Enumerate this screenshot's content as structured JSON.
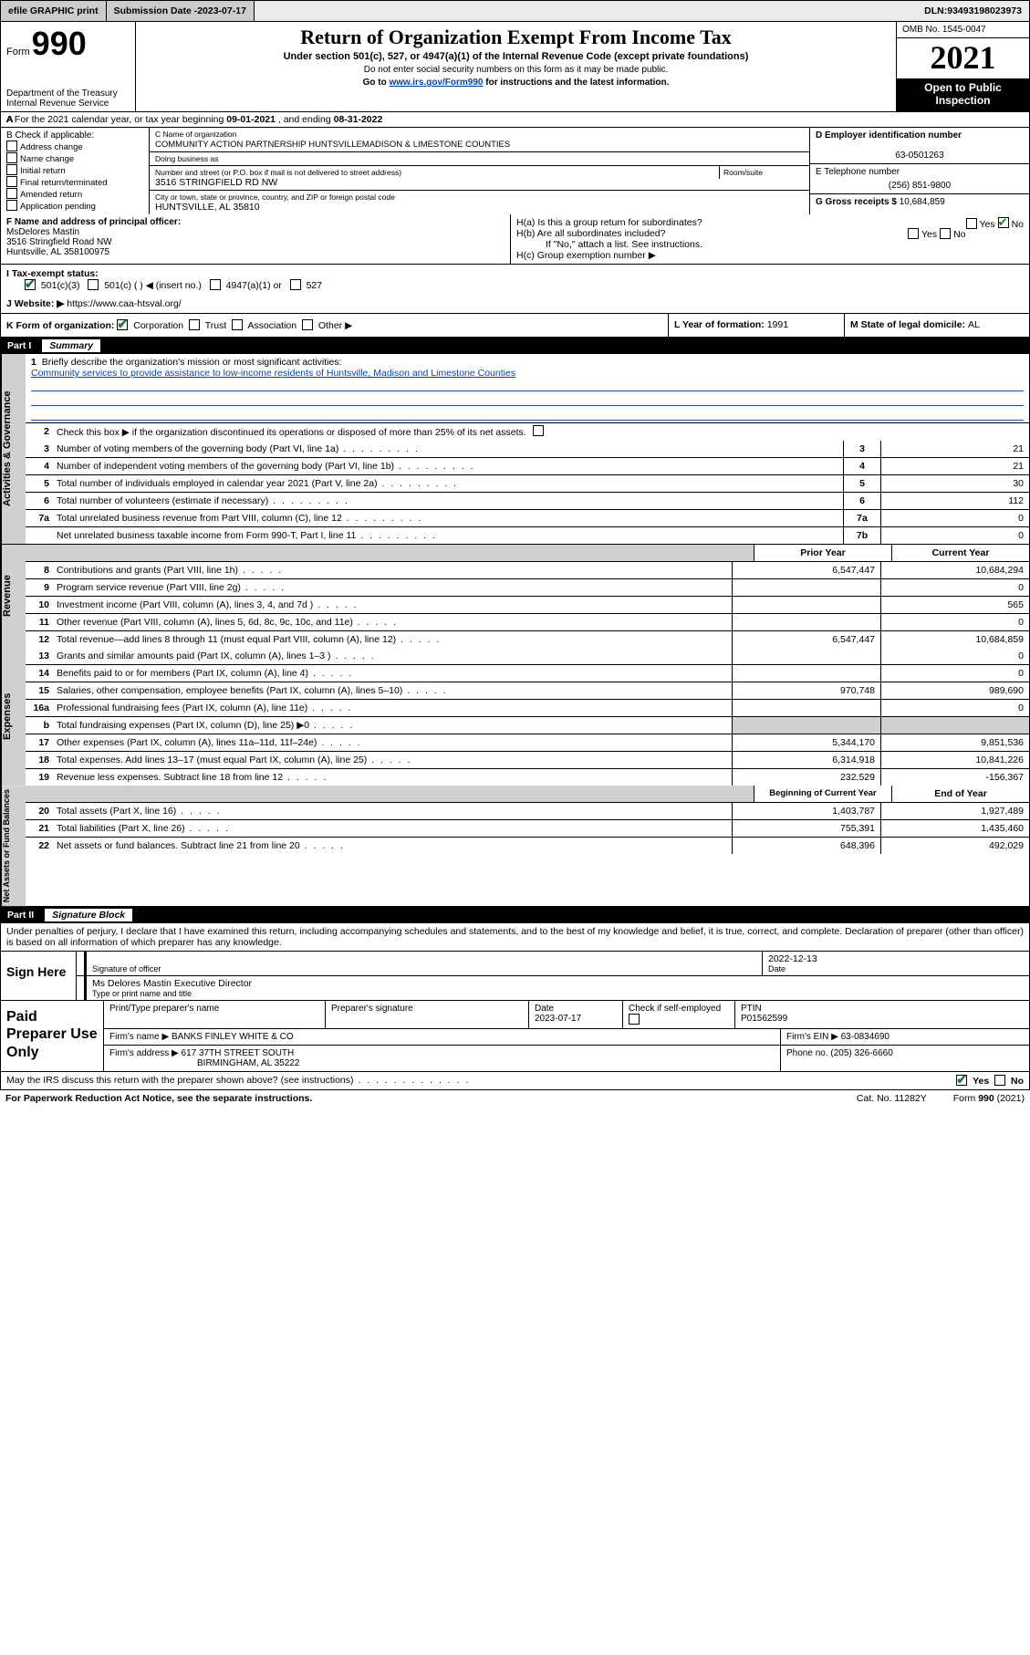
{
  "topbar": {
    "efile": "efile GRAPHIC print",
    "sub_label": "Submission Date - ",
    "sub_date": "2023-07-17",
    "dln_label": "DLN: ",
    "dln": "93493198023973"
  },
  "header": {
    "form_word": "Form",
    "form_no": "990",
    "dept": "Department of the Treasury\nInternal Revenue Service",
    "title": "Return of Organization Exempt From Income Tax",
    "sub": "Under section 501(c), 527, or 4947(a)(1) of the Internal Revenue Code (except private foundations)",
    "note1": "Do not enter social security numbers on this form as it may be made public.",
    "note2_pre": "Go to ",
    "note2_link": "www.irs.gov/Form990",
    "note2_post": " for instructions and the latest information.",
    "omb": "OMB No. 1545-0047",
    "year": "2021",
    "inspect1": "Open to Public",
    "inspect2": "Inspection"
  },
  "rowA": {
    "pre": "A For the 2021 calendar year, or tax year beginning ",
    "start": "09-01-2021",
    "mid": " , and ending ",
    "end": "08-31-2022"
  },
  "B": {
    "title": "B Check if applicable:",
    "items": [
      "Address change",
      "Name change",
      "Initial return",
      "Final return/terminated",
      "Amended return",
      "Application pending"
    ]
  },
  "C": {
    "name_lbl": "C Name of organization",
    "name": "COMMUNITY ACTION PARTNERSHIP HUNTSVILLEMADISON & LIMESTONE COUNTIES",
    "dba_lbl": "Doing business as",
    "addr_lbl": "Number and street (or P.O. box if mail is not delivered to street address)",
    "room_lbl": "Room/suite",
    "addr": "3516 STRINGFIELD RD NW",
    "city_lbl": "City or town, state or province, country, and ZIP or foreign postal code",
    "city": "HUNTSVILLE, AL  35810"
  },
  "D": {
    "lbl": "D Employer identification number",
    "val": "63-0501263"
  },
  "E": {
    "lbl": "E Telephone number",
    "val": "(256) 851-9800"
  },
  "G": {
    "lbl": "G Gross receipts $ ",
    "val": "10,684,859"
  },
  "F": {
    "lbl": "F Name and address of principal officer:",
    "name": "MsDelores Mastin",
    "addr1": "3516 Stringfield Road NW",
    "addr2": "Huntsville, AL  358100975"
  },
  "H": {
    "a": "H(a)  Is this a group return for subordinates?",
    "b": "H(b)  Are all subordinates included?",
    "b_note": "If \"No,\" attach a list. See instructions.",
    "c": "H(c)  Group exemption number ▶",
    "yes": "Yes",
    "no": "No"
  },
  "I": {
    "lbl": "I      Tax-exempt status:",
    "opts": [
      "501(c)(3)",
      "501(c) (   ) ◀ (insert no.)",
      "4947(a)(1) or",
      "527"
    ]
  },
  "J": {
    "lbl": "J     Website: ▶ ",
    "val": "https://www.caa-htsval.org/"
  },
  "K": {
    "lbl": "K Form of organization: ",
    "opts": [
      "Corporation",
      "Trust",
      "Association",
      "Other ▶"
    ],
    "L_lbl": "L Year of formation: ",
    "L_val": "1991",
    "M_lbl": "M State of legal domicile: ",
    "M_val": "AL"
  },
  "part1": {
    "label": "Part I",
    "title": "Summary",
    "q1_lbl": "Briefly describe the organization's mission or most significant activities:",
    "q1_text": "Community services to provide assistance to low-income residents of Huntsville, Madison and Limestone Counties",
    "q2": "Check this box ▶      if the organization discontinued its operations or disposed of more than 25% of its net assets.",
    "lines_gov": [
      {
        "n": "3",
        "d": "Number of voting members of the governing body (Part VI, line 1a)",
        "bn": "3",
        "v": "21"
      },
      {
        "n": "4",
        "d": "Number of independent voting members of the governing body (Part VI, line 1b)",
        "bn": "4",
        "v": "21"
      },
      {
        "n": "5",
        "d": "Total number of individuals employed in calendar year 2021 (Part V, line 2a)",
        "bn": "5",
        "v": "30"
      },
      {
        "n": "6",
        "d": "Total number of volunteers (estimate if necessary)",
        "bn": "6",
        "v": "112"
      },
      {
        "n": "7a",
        "d": "Total unrelated business revenue from Part VIII, column (C), line 12",
        "bn": "7a",
        "v": "0"
      },
      {
        "n": "",
        "d": "Net unrelated business taxable income from Form 990-T, Part I, line 11",
        "bn": "7b",
        "v": "0"
      }
    ],
    "hdr_prior": "Prior Year",
    "hdr_curr": "Current Year",
    "lines_rev": [
      {
        "n": "8",
        "d": "Contributions and grants (Part VIII, line 1h)",
        "p": "6,547,447",
        "c": "10,684,294"
      },
      {
        "n": "9",
        "d": "Program service revenue (Part VIII, line 2g)",
        "p": "",
        "c": "0"
      },
      {
        "n": "10",
        "d": "Investment income (Part VIII, column (A), lines 3, 4, and 7d )",
        "p": "",
        "c": "565"
      },
      {
        "n": "11",
        "d": "Other revenue (Part VIII, column (A), lines 5, 6d, 8c, 9c, 10c, and 11e)",
        "p": "",
        "c": "0"
      },
      {
        "n": "12",
        "d": "Total revenue—add lines 8 through 11 (must equal Part VIII, column (A), line 12)",
        "p": "6,547,447",
        "c": "10,684,859"
      }
    ],
    "lines_exp": [
      {
        "n": "13",
        "d": "Grants and similar amounts paid (Part IX, column (A), lines 1–3 )",
        "p": "",
        "c": "0"
      },
      {
        "n": "14",
        "d": "Benefits paid to or for members (Part IX, column (A), line 4)",
        "p": "",
        "c": "0"
      },
      {
        "n": "15",
        "d": "Salaries, other compensation, employee benefits (Part IX, column (A), lines 5–10)",
        "p": "970,748",
        "c": "989,690"
      },
      {
        "n": "16a",
        "d": "Professional fundraising fees (Part IX, column (A), line 11e)",
        "p": "",
        "c": "0"
      },
      {
        "n": "b",
        "d": "Total fundraising expenses (Part IX, column (D), line 25) ▶0",
        "p": "GREY",
        "c": "GREY"
      },
      {
        "n": "17",
        "d": "Other expenses (Part IX, column (A), lines 11a–11d, 11f–24e)",
        "p": "5,344,170",
        "c": "9,851,536"
      },
      {
        "n": "18",
        "d": "Total expenses. Add lines 13–17 (must equal Part IX, column (A), line 25)",
        "p": "6,314,918",
        "c": "10,841,226"
      },
      {
        "n": "19",
        "d": "Revenue less expenses. Subtract line 18 from line 12",
        "p": "232,529",
        "c": "-156,367"
      }
    ],
    "hdr_boy": "Beginning of Current Year",
    "hdr_eoy": "End of Year",
    "lines_net": [
      {
        "n": "20",
        "d": "Total assets (Part X, line 16)",
        "p": "1,403,787",
        "c": "1,927,489"
      },
      {
        "n": "21",
        "d": "Total liabilities (Part X, line 26)",
        "p": "755,391",
        "c": "1,435,460"
      },
      {
        "n": "22",
        "d": "Net assets or fund balances. Subtract line 21 from line 20",
        "p": "648,396",
        "c": "492,029"
      }
    ],
    "vtabs": [
      "Activities & Governance",
      "Revenue",
      "Expenses",
      "Net Assets or Fund Balances"
    ]
  },
  "part2": {
    "label": "Part II",
    "title": "Signature Block",
    "para": "Under penalties of perjury, I declare that I have examined this return, including accompanying schedules and statements, and to the best of my knowledge and belief, it is true, correct, and complete. Declaration of preparer (other than officer) is based on all information of which preparer has any knowledge."
  },
  "sign": {
    "here": "Sign Here",
    "sig_lbl": "Signature of officer",
    "date_lbl": "Date",
    "date": "2022-12-13",
    "name": "Ms Delores Mastin  Executive Director",
    "name_lbl": "Type or print name and title"
  },
  "paid": {
    "left": "Paid Preparer Use Only",
    "h1": "Print/Type preparer's name",
    "h2": "Preparer's signature",
    "h3": "Date",
    "h3v": "2023-07-17",
    "h4": "Check        if self-employed",
    "h5": "PTIN",
    "h5v": "P01562599",
    "firm_lbl": "Firm's name     ▶ ",
    "firm": "BANKS FINLEY WHITE & CO",
    "ein_lbl": "Firm's EIN ▶ ",
    "ein": "63-0834690",
    "addr_lbl": "Firm's address ▶ ",
    "addr1": "617 37TH STREET SOUTH",
    "addr2": "BIRMINGHAM, AL  35222",
    "phone_lbl": "Phone no. ",
    "phone": "(205) 326-6660"
  },
  "footer": {
    "q": "May the IRS discuss this return with the preparer shown above? (see instructions)",
    "yes": "Yes",
    "no": "No",
    "pra": "For Paperwork Reduction Act Notice, see the separate instructions.",
    "cat": "Cat. No. 11282Y",
    "form": "Form 990 (2021)"
  }
}
